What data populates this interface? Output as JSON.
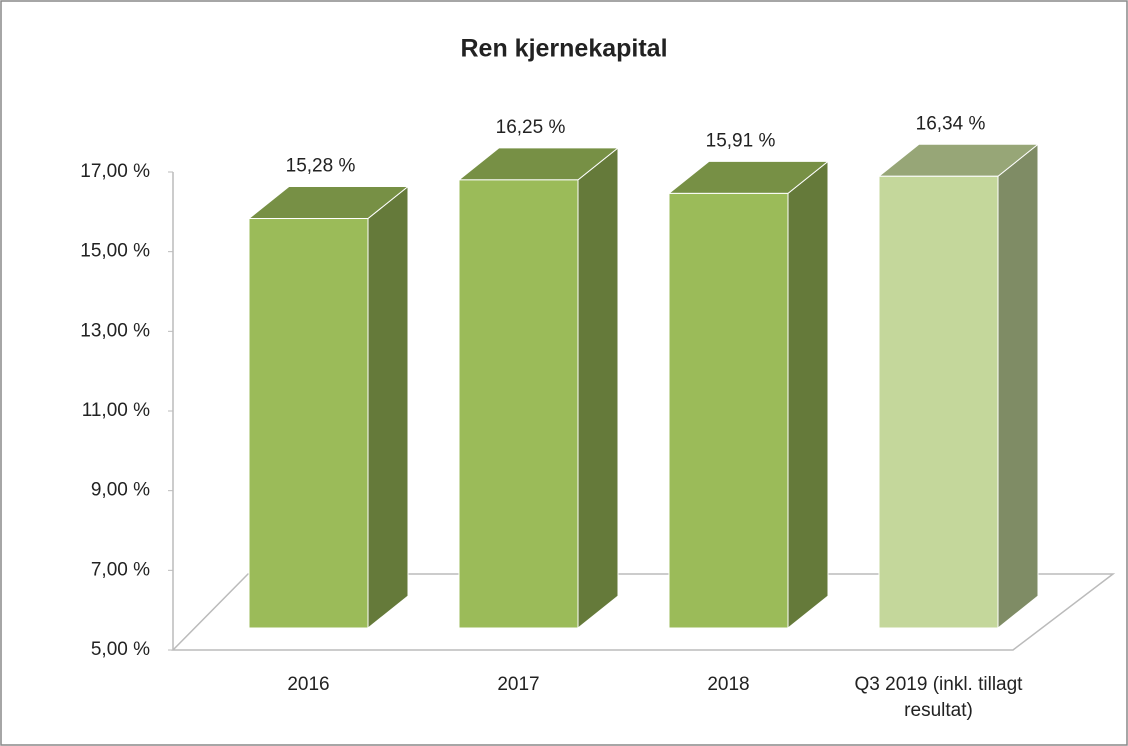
{
  "chart_data": {
    "type": "bar3d",
    "title": "Ren kjernekapital",
    "categories": [
      "2016",
      "2017",
      "2018",
      "Q3 2019 (inkl. tillagt resultat)"
    ],
    "values": [
      15.28,
      16.25,
      15.91,
      16.34
    ],
    "value_labels": [
      "15,28 %",
      "16,25 %",
      "15,91 %",
      "16,34 %"
    ],
    "colors": [
      "#9bbb59",
      "#9bbb59",
      "#9bbb59",
      "#c4d79b"
    ],
    "ylim": [
      5,
      17
    ],
    "yticks": [
      {
        "value": 5,
        "label": "5,00 %"
      },
      {
        "value": 7,
        "label": "7,00 %"
      },
      {
        "value": 9,
        "label": "9,00 %"
      },
      {
        "value": 11,
        "label": "11,00 %"
      },
      {
        "value": 13,
        "label": "13,00 %"
      },
      {
        "value": 15,
        "label": "15,00 %"
      },
      {
        "value": 17,
        "label": "17,00 %"
      }
    ],
    "grid": false
  }
}
